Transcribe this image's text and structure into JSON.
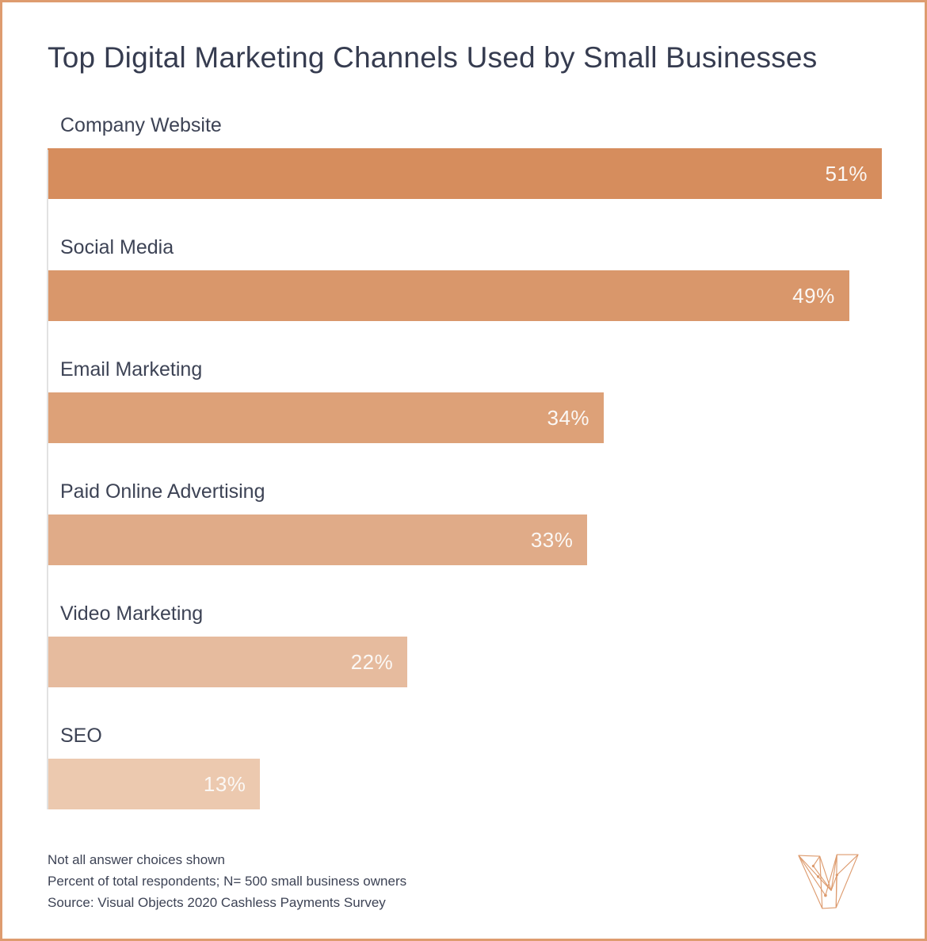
{
  "title": "Top Digital Marketing Channels Used by Small Businesses",
  "chart_data": {
    "type": "bar",
    "orientation": "horizontal",
    "title": "Top Digital Marketing Channels Used by Small Businesses",
    "categories": [
      "Company Website",
      "Social Media",
      "Email Marketing",
      "Paid Online Advertising",
      "Video Marketing",
      "SEO"
    ],
    "values": [
      51,
      49,
      34,
      33,
      22,
      13
    ],
    "value_labels": [
      "51%",
      "49%",
      "34%",
      "33%",
      "22%",
      "13%"
    ],
    "unit": "%",
    "xlim": [
      0,
      51
    ],
    "grid": false,
    "value_label_position": "inside-end",
    "value_label_color": "#fbf8f5",
    "bar_colors": [
      "#d68d5d",
      "#d9976b",
      "#dda178",
      "#e0ab88",
      "#e6bb9e",
      "#ecc9af"
    ]
  },
  "footnotes": [
    "Not all answer choices shown",
    "Percent of total respondents; N= 500 small business owners",
    "Source: Visual Objects 2020 Cashless Payments Survey"
  ],
  "colors": {
    "page_border": "#de9c6f",
    "title_text": "#363c50",
    "label_text": "#3d4355",
    "axis_line": "#e2e2e2",
    "logo_stroke": "#dd9b6e",
    "background": "#ffffff"
  }
}
